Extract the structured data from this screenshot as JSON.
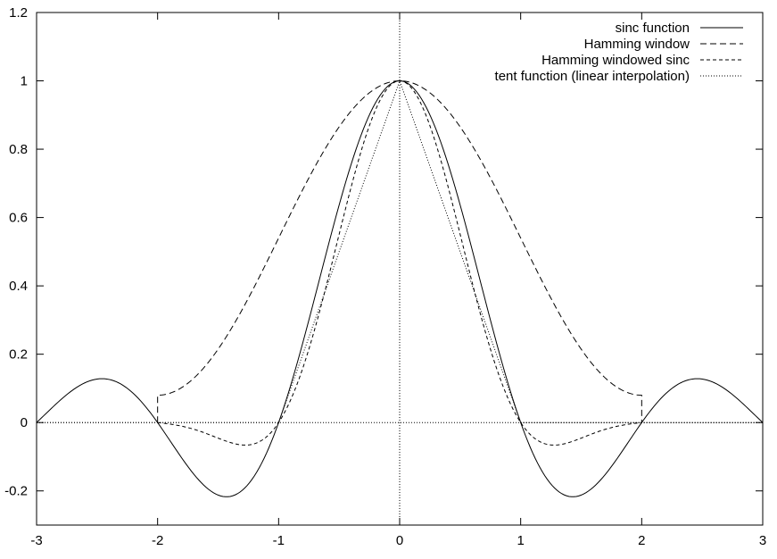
{
  "chart_data": {
    "type": "line",
    "title": "",
    "xlabel": "",
    "ylabel": "",
    "xlim": [
      -3,
      3
    ],
    "ylim": [
      -0.3,
      1.2
    ],
    "x_ticks": [
      "-3",
      "-2",
      "-1",
      "0",
      "1",
      "2",
      "3"
    ],
    "y_ticks": [
      "-0.2",
      "0",
      "0.2",
      "0.4",
      "0.6",
      "0.8",
      "1",
      "1.2"
    ],
    "grid": false,
    "legend_position": "top-right",
    "zero_axes": true,
    "series": [
      {
        "name": "sinc function",
        "dash": "solid",
        "domain": [
          -3,
          3
        ],
        "x": [
          -3,
          -2.75,
          -2.5,
          -2.25,
          -2,
          -1.75,
          -1.5,
          -1.43,
          -1.25,
          -1,
          -0.75,
          -0.5,
          -0.25,
          0,
          0.25,
          0.5,
          0.75,
          1,
          1.25,
          1.43,
          1.5,
          1.75,
          2,
          2.25,
          2.5,
          2.75,
          3
        ],
        "y": [
          0,
          0.082,
          0.127,
          0.1,
          0,
          -0.129,
          -0.212,
          -0.217,
          -0.18,
          0,
          0.3,
          0.637,
          0.9,
          1,
          0.9,
          0.637,
          0.3,
          0,
          -0.18,
          -0.217,
          -0.212,
          -0.129,
          0,
          0.1,
          0.127,
          0.082,
          0
        ]
      },
      {
        "name": "Hamming window",
        "dash": "long-dash",
        "domain": [
          -2,
          2
        ],
        "x": [
          -2,
          -1.75,
          -1.5,
          -1.25,
          -1,
          -0.75,
          -0.5,
          -0.25,
          0,
          0.25,
          0.5,
          0.75,
          1,
          1.25,
          1.5,
          1.75,
          2
        ],
        "y": [
          0.08,
          0.115,
          0.215,
          0.367,
          0.54,
          0.713,
          0.865,
          0.965,
          1,
          0.965,
          0.865,
          0.713,
          0.54,
          0.367,
          0.215,
          0.115,
          0.08
        ]
      },
      {
        "name": "Hamming windowed sinc",
        "dash": "short-dash",
        "domain": [
          -2,
          2
        ],
        "x": [
          -2,
          -1.75,
          -1.5,
          -1.25,
          -1,
          -0.75,
          -0.5,
          -0.25,
          0,
          0.25,
          0.5,
          0.75,
          1,
          1.25,
          1.5,
          1.75,
          2
        ],
        "y": [
          0,
          -0.015,
          -0.046,
          -0.066,
          0,
          0.214,
          0.551,
          0.869,
          1,
          0.869,
          0.551,
          0.214,
          0,
          -0.066,
          -0.046,
          -0.015,
          0
        ]
      },
      {
        "name": "tent function (linear interpolation)",
        "dash": "dotted",
        "domain": [
          -3,
          3
        ],
        "x": [
          -3,
          -1,
          0,
          1,
          3
        ],
        "y": [
          0,
          0,
          1,
          0,
          0
        ]
      }
    ]
  }
}
